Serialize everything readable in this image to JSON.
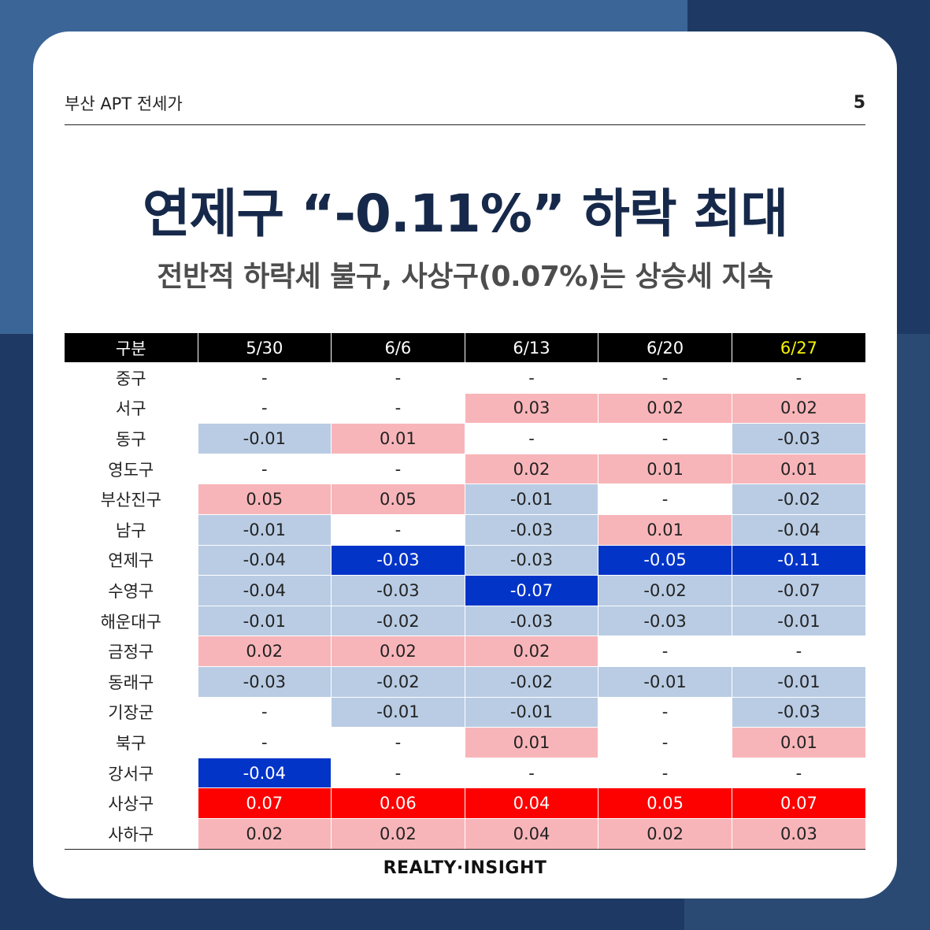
{
  "header": {
    "title": "부산 APT 전세가",
    "page_number": "5"
  },
  "headline": "연제구 “-0.11%” 하락 최대",
  "subheadline": "전반적 하락세 불구, 사상구(0.07%)는 상승세 지속",
  "colors": {
    "background_dark": "#1e3a64",
    "background_light": "#3b6597",
    "headline_navy": "#16294a",
    "light_negative": "#b9cce4",
    "light_positive": "#f8b5b9",
    "strong_negative": "#0234c8",
    "strong_positive": "#fd0000",
    "latest_header": "#f5f500"
  },
  "table": {
    "columns": [
      "구분",
      "5/30",
      "6/6",
      "6/13",
      "6/20",
      "6/27"
    ],
    "rows": [
      {
        "district": "중구",
        "values": [
          "-",
          "-",
          "-",
          "-",
          "-"
        ],
        "tones": [
          "none",
          "none",
          "none",
          "none",
          "none"
        ]
      },
      {
        "district": "서구",
        "values": [
          "-",
          "-",
          "0.03",
          "0.02",
          "0.02"
        ],
        "tones": [
          "none",
          "none",
          "lpos",
          "lpos",
          "lpos"
        ]
      },
      {
        "district": "동구",
        "values": [
          "-0.01",
          "0.01",
          "-",
          "-",
          "-0.03"
        ],
        "tones": [
          "lneg",
          "lpos",
          "none",
          "none",
          "lneg"
        ]
      },
      {
        "district": "영도구",
        "values": [
          "-",
          "-",
          "0.02",
          "0.01",
          "0.01"
        ],
        "tones": [
          "none",
          "none",
          "lpos",
          "lpos",
          "lpos"
        ]
      },
      {
        "district": "부산진구",
        "values": [
          "0.05",
          "0.05",
          "-0.01",
          "-",
          "-0.02"
        ],
        "tones": [
          "lpos",
          "lpos",
          "lneg",
          "none",
          "lneg"
        ]
      },
      {
        "district": "남구",
        "values": [
          "-0.01",
          "-",
          "-0.03",
          "0.01",
          "-0.04"
        ],
        "tones": [
          "lneg",
          "none",
          "lneg",
          "lpos",
          "lneg"
        ]
      },
      {
        "district": "연제구",
        "values": [
          "-0.04",
          "-0.03",
          "-0.03",
          "-0.05",
          "-0.11"
        ],
        "tones": [
          "lneg",
          "sneg",
          "lneg",
          "sneg",
          "sneg"
        ]
      },
      {
        "district": "수영구",
        "values": [
          "-0.04",
          "-0.03",
          "-0.07",
          "-0.02",
          "-0.07"
        ],
        "tones": [
          "lneg",
          "lneg",
          "sneg",
          "lneg",
          "lneg"
        ]
      },
      {
        "district": "해운대구",
        "values": [
          "-0.01",
          "-0.02",
          "-0.03",
          "-0.03",
          "-0.01"
        ],
        "tones": [
          "lneg",
          "lneg",
          "lneg",
          "lneg",
          "lneg"
        ]
      },
      {
        "district": "금정구",
        "values": [
          "0.02",
          "0.02",
          "0.02",
          "-",
          "-"
        ],
        "tones": [
          "lpos",
          "lpos",
          "lpos",
          "none",
          "none"
        ]
      },
      {
        "district": "동래구",
        "values": [
          "-0.03",
          "-0.02",
          "-0.02",
          "-0.01",
          "-0.01"
        ],
        "tones": [
          "lneg",
          "lneg",
          "lneg",
          "lneg",
          "lneg"
        ]
      },
      {
        "district": "기장군",
        "values": [
          "-",
          "-0.01",
          "-0.01",
          "-",
          "-0.03"
        ],
        "tones": [
          "none",
          "lneg",
          "lneg",
          "none",
          "lneg"
        ]
      },
      {
        "district": "북구",
        "values": [
          "-",
          "-",
          "0.01",
          "-",
          "0.01"
        ],
        "tones": [
          "none",
          "none",
          "lpos",
          "none",
          "lpos"
        ]
      },
      {
        "district": "강서구",
        "values": [
          "-0.04",
          "-",
          "-",
          "-",
          "-"
        ],
        "tones": [
          "sneg",
          "none",
          "none",
          "none",
          "none"
        ]
      },
      {
        "district": "사상구",
        "values": [
          "0.07",
          "0.06",
          "0.04",
          "0.05",
          "0.07"
        ],
        "tones": [
          "spos",
          "spos",
          "spos",
          "spos",
          "spos"
        ]
      },
      {
        "district": "사하구",
        "values": [
          "0.02",
          "0.02",
          "0.04",
          "0.02",
          "0.03"
        ],
        "tones": [
          "lpos",
          "lpos",
          "lpos",
          "lpos",
          "lpos"
        ]
      }
    ]
  },
  "footer": {
    "brand": "REALTY·INSIGHT"
  }
}
